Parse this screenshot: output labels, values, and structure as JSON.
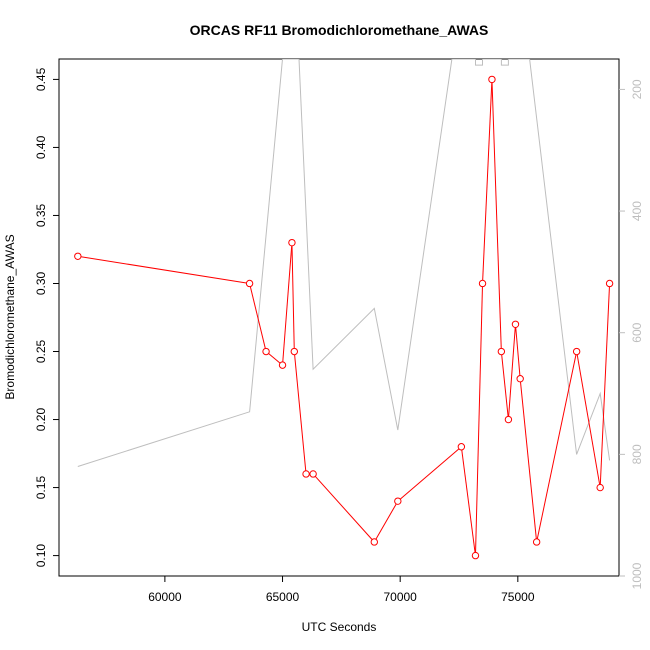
{
  "chart_data": {
    "type": "line",
    "title": "ORCAS RF11 Bromodichloromethane_AWAS",
    "xlabel": "UTC Seconds",
    "ylabel": "Bromodichloromethane_AWAS",
    "xlim": [
      55500,
      79300
    ],
    "ylim": [
      0.085,
      0.465
    ],
    "y2lim": [
      1000,
      150
    ],
    "y2_reversed": true,
    "x_ticks": [
      60000,
      65000,
      70000,
      75000
    ],
    "y_ticks": [
      0.1,
      0.15,
      0.2,
      0.25,
      0.3,
      0.35,
      0.4,
      0.45
    ],
    "y2_ticks": [
      200,
      400,
      600,
      800,
      1000
    ],
    "series": [
      {
        "color": "#ff0000",
        "marker": "open-circle",
        "points": [
          [
            56300,
            0.32
          ],
          [
            63600,
            0.3
          ],
          [
            64300,
            0.25
          ],
          [
            65000,
            0.24
          ],
          [
            65400,
            0.33
          ],
          [
            65500,
            0.25
          ],
          [
            66000,
            0.16
          ],
          [
            66300,
            0.16
          ],
          [
            68900,
            0.11
          ],
          [
            69900,
            0.14
          ],
          [
            72600,
            0.18
          ],
          [
            73200,
            0.1
          ],
          [
            73500,
            0.3
          ],
          [
            73900,
            0.45
          ],
          [
            74300,
            0.25
          ],
          [
            74600,
            0.2
          ],
          [
            74900,
            0.27
          ],
          [
            75100,
            0.23
          ],
          [
            75800,
            0.11
          ],
          [
            77500,
            0.25
          ],
          [
            78500,
            0.15
          ],
          [
            78900,
            0.3
          ]
        ]
      },
      {
        "color": "#bebebe",
        "axis": "right",
        "points": [
          [
            56300,
            820
          ],
          [
            63600,
            730
          ],
          [
            65000,
            150
          ],
          [
            65700,
            150
          ],
          [
            66300,
            660
          ],
          [
            68900,
            560
          ],
          [
            69900,
            760
          ],
          [
            72200,
            150
          ],
          [
            73200,
            150
          ],
          [
            73200,
            160
          ],
          [
            73500,
            160
          ],
          [
            73500,
            150
          ],
          [
            74300,
            150
          ],
          [
            74300,
            160
          ],
          [
            74600,
            160
          ],
          [
            74600,
            150
          ],
          [
            75500,
            150
          ],
          [
            77500,
            800
          ],
          [
            78500,
            700
          ],
          [
            78900,
            810
          ]
        ]
      }
    ]
  }
}
